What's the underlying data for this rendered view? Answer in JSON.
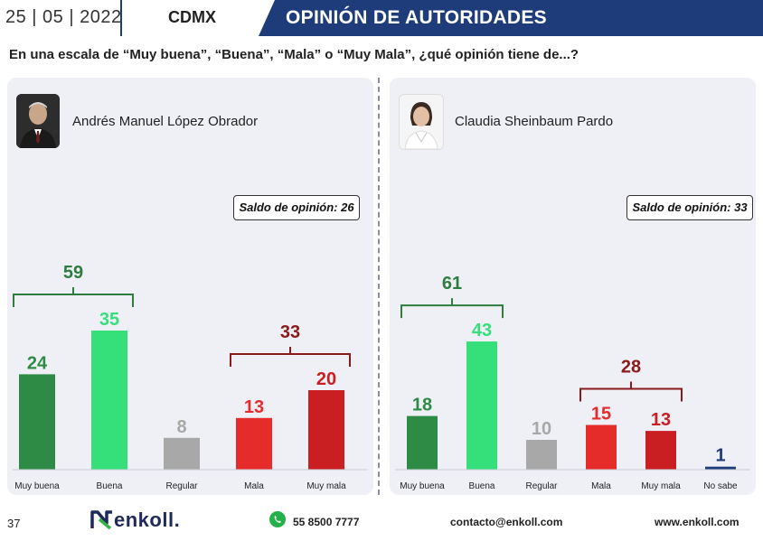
{
  "header": {
    "date": "25 | 05 | 2022",
    "city": "CDMX",
    "title": "OPINIÓN DE AUTORIDADES"
  },
  "question": "En una escala de “Muy buena”, “Buena”, “Mala” o “Muy Mala”, ¿qué opinión tiene de...?",
  "colors": {
    "muy_buena": "#2e8b45",
    "buena": "#35e07a",
    "regular": "#a8a8a8",
    "mala": "#e62b2b",
    "muy_mala": "#c91e22",
    "no_sabe": "#1f3c7a",
    "positive_bracket": "#2e7d3f",
    "negative_bracket": "#8b1a1a"
  },
  "chart_data": [
    {
      "type": "bar",
      "person": "Andrés Manuel López Obrador",
      "saldo": "Saldo de opinión: 26",
      "categories": [
        "Muy buena",
        "Buena",
        "Regular",
        "Mala",
        "Muy mala"
      ],
      "values": [
        24,
        35,
        8,
        13,
        20
      ],
      "positive_total": "59",
      "negative_total": "33"
    },
    {
      "type": "bar",
      "person": "Claudia Sheinbaum Pardo",
      "saldo": "Saldo de opinión: 33",
      "categories": [
        "Muy buena",
        "Buena",
        "Regular",
        "Mala",
        "Muy mala",
        "No sabe"
      ],
      "values": [
        18,
        43,
        10,
        15,
        13,
        1
      ],
      "positive_total": "61",
      "negative_total": "28"
    }
  ],
  "footer": {
    "page": "37",
    "logo": "enkoll.",
    "phone": "55 8500 7777",
    "email": "contacto@enkoll.com",
    "web": "www.enkoll.com"
  }
}
